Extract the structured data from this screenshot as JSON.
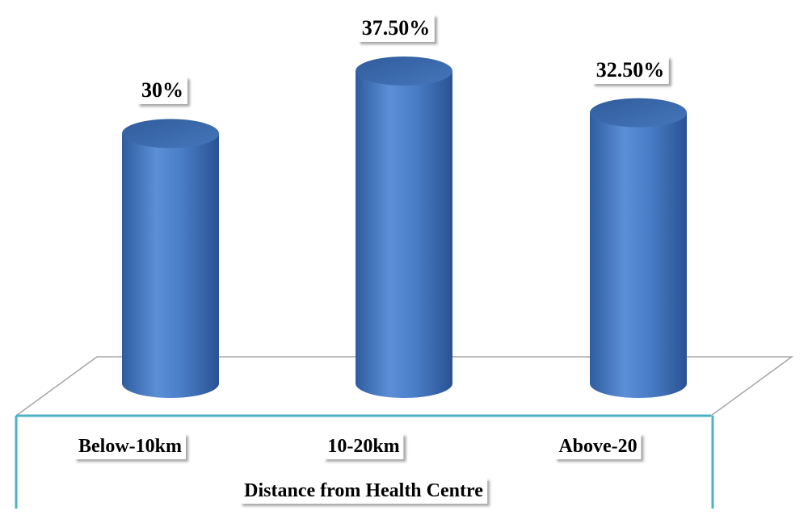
{
  "chart_data": {
    "type": "bar",
    "style": "3d-cylinder",
    "categories": [
      "Below-10km",
      "10-20km",
      "Above-20"
    ],
    "values": [
      30,
      37.5,
      32.5
    ],
    "data_labels": [
      "30%",
      "37.50%",
      "32.50%"
    ],
    "xlabel": "Distance from Health Centre",
    "ylabel": "",
    "title": "",
    "ylim": [
      0,
      37.5
    ],
    "grid": false,
    "legend": "none",
    "colors": {
      "bar_light": "#5b8fd6",
      "bar_mid": "#3f74bd",
      "bar_dark": "#244e8c",
      "bar_top": "#3a66a8",
      "floor_line": "#a6a6a6",
      "base_frame": "#4fb0c6"
    }
  }
}
